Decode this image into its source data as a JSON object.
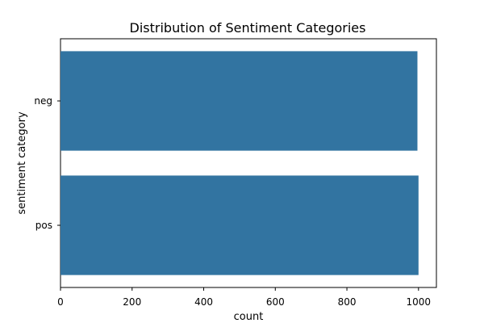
{
  "chart_data": {
    "type": "bar",
    "orientation": "horizontal",
    "title": "Distribution of Sentiment Categories",
    "xlabel": "count",
    "ylabel": "sentiment category",
    "categories": [
      "neg",
      "pos"
    ],
    "values": [
      997,
      1000
    ],
    "xlim": [
      0,
      1050
    ],
    "xticks": [
      0,
      200,
      400,
      600,
      800,
      1000
    ],
    "grid": false,
    "bar_color": "#3274a1"
  }
}
